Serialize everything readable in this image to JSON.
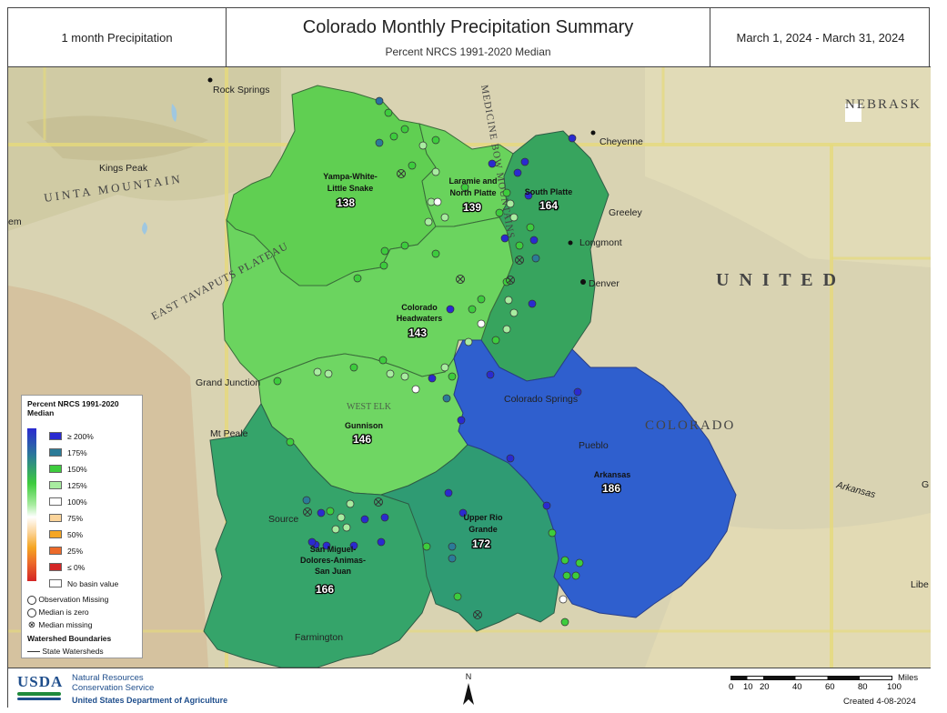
{
  "header": {
    "left_text": "1 month Precipitation",
    "title": "Colorado Monthly Precipitation Summary",
    "subtitle": "Percent NRCS 1991-2020 Median",
    "date_range": "March 1, 2024 - March 31, 2024"
  },
  "map": {
    "region_labels": {
      "nebraska": "NEBRASK",
      "united": "U N I T E D",
      "colorado": "COLORADO",
      "uinta": "UINTA MOUNTAIN",
      "tavaputs": "EAST TAVAPUTS PLATEAU",
      "medicine_bow": "MEDICINE BOW MOUNTAINS",
      "west_elk": "WEST ELK"
    },
    "cities": {
      "rock_springs": "Rock Springs",
      "cheyenne": "Cheyenne",
      "greeley": "Greeley",
      "longmont": "Longmont",
      "denver": "Denver",
      "kings_peak": "Kings Peak",
      "grand_junction": "Grand Junction",
      "mt_peale": "Mt Peale",
      "colorado_springs": "Colorado Springs",
      "pueblo": "Pueblo",
      "farmington": "Farmington",
      "arkansas_river": "Arkansas",
      "source": "Source",
      "lib": "Libe",
      "em": "em",
      "g": "G"
    },
    "basins": [
      {
        "id": "yampa",
        "name_line1": "Yampa-White-",
        "name_line2": "Little Snake",
        "percent": "138",
        "color": "#5fd05f"
      },
      {
        "id": "laramie",
        "name_line1": "Laramie and",
        "name_line2": "North Platte",
        "percent": "139",
        "color": "#66d466"
      },
      {
        "id": "south_platte",
        "name_line1": "South Platte",
        "name_line2": "",
        "percent": "164",
        "color": "#35a360"
      },
      {
        "id": "colorado_hw",
        "name_line1": "Colorado",
        "name_line2": "Headwaters",
        "percent": "143",
        "color": "#6ad66a"
      },
      {
        "id": "gunnison",
        "name_line1": "Gunnison",
        "name_line2": "",
        "percent": "146",
        "color": "#6ad66a"
      },
      {
        "id": "san_miguel",
        "name_line1": "San Miguel-",
        "name_line2": "Dolores-Animas-",
        "name_line3": "San Juan",
        "percent": "166",
        "color": "#34a36a"
      },
      {
        "id": "upper_rio",
        "name_line1": "Upper Rio",
        "name_line2": "Grande",
        "percent": "172",
        "color": "#2e9a72"
      },
      {
        "id": "arkansas",
        "name_line1": "Arkansas",
        "name_line2": "",
        "percent": "186",
        "color": "#2f5ed0"
      }
    ]
  },
  "legend": {
    "title": "Percent NRCS 1991-2020 Median",
    "classes": [
      {
        "label": "≥ 200%",
        "color": "#2a2ad0"
      },
      {
        "label": "175%",
        "color": "#2b7b98"
      },
      {
        "label": "150%",
        "color": "#3dcc3d"
      },
      {
        "label": "125%",
        "color": "#a8eca0"
      },
      {
        "label": "100%",
        "color": "#ffffff"
      },
      {
        "label": "75%",
        "color": "#fbd49a"
      },
      {
        "label": "50%",
        "color": "#f5a623"
      },
      {
        "label": "25%",
        "color": "#ec6a2a"
      },
      {
        "label": "≤ 0%",
        "color": "#d42525"
      },
      {
        "label": "No basin value",
        "color": "#ffffff"
      }
    ],
    "obs_missing": "Observation Missing",
    "median_zero": "Median is zero",
    "median_missing": "Median missing",
    "watershed_title": "Watershed Boundaries",
    "watershed_item": "State Watersheds"
  },
  "footer": {
    "usda": "USDA",
    "nrcs_line1": "Natural Resources",
    "nrcs_line2": "Conservation Service",
    "dept": "United States Department of Agriculture",
    "north": "N",
    "scale_unit": "Miles",
    "scale_ticks": [
      "0",
      "10",
      "20",
      "40",
      "60",
      "80",
      "100"
    ],
    "created": "Created 4-08-2024"
  }
}
